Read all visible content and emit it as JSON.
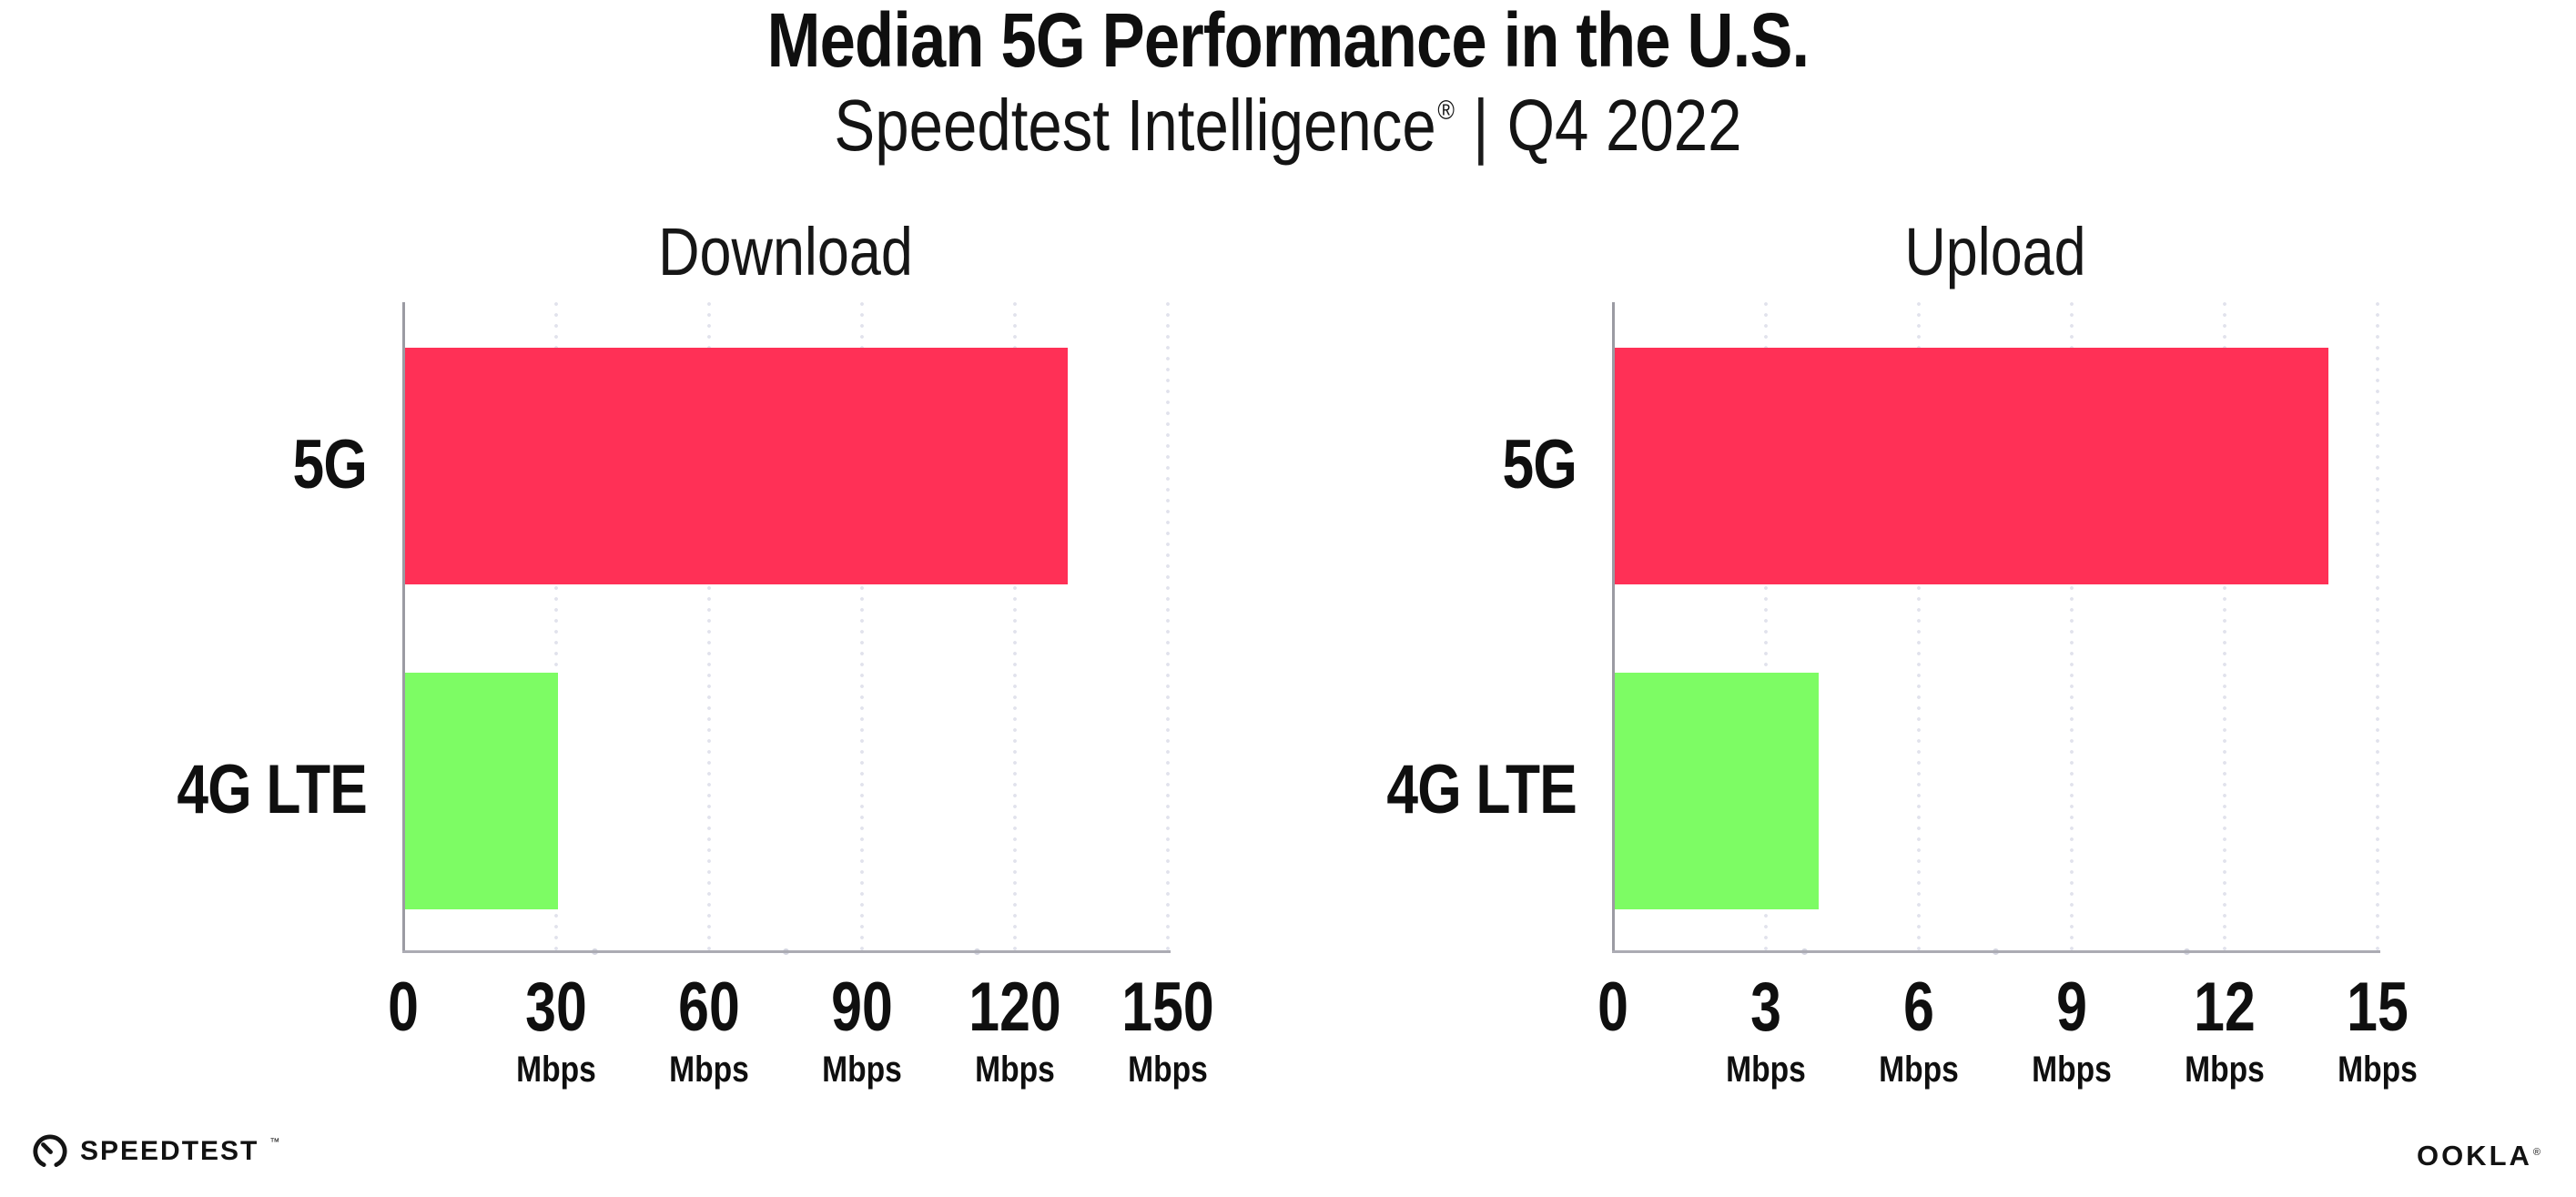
{
  "header": {
    "title": "Median 5G Performance in the U.S.",
    "subtitle_brand": "Speedtest Intelligence",
    "subtitle_reg": "®",
    "subtitle_separator": "|",
    "subtitle_period": "Q4 2022"
  },
  "footer": {
    "speedtest_label": "SPEEDTEST",
    "speedtest_tm": "™",
    "ookla_label": "OOKLA",
    "ookla_reg": "®"
  },
  "colors": {
    "bar_5g": "#FF3056",
    "bar_4g_lte": "#7DFC64",
    "axis_line": "#ABABB3",
    "y_axis_line": "#9B9BA3",
    "gridline_dot": "#E1E2EC",
    "text": "#0F0F0F"
  },
  "chart_data": [
    {
      "type": "bar",
      "orientation": "horizontal",
      "title": "Download",
      "categories": [
        "5G",
        "4G LTE"
      ],
      "values": [
        130,
        30
      ],
      "unit": "Mbps",
      "xlim": [
        0,
        150
      ],
      "xticks": [
        0,
        30,
        60,
        90,
        120,
        150
      ],
      "bar_colors": [
        "#FF3056",
        "#7DFC64"
      ],
      "grid": "dotted-vertical",
      "legend": "none"
    },
    {
      "type": "bar",
      "orientation": "horizontal",
      "title": "Upload",
      "categories": [
        "5G",
        "4G LTE"
      ],
      "values": [
        14,
        4
      ],
      "unit": "Mbps",
      "xlim": [
        0,
        15
      ],
      "xticks": [
        0,
        3,
        6,
        9,
        12,
        15
      ],
      "bar_colors": [
        "#FF3056",
        "#7DFC64"
      ],
      "grid": "dotted-vertical",
      "legend": "none"
    }
  ]
}
